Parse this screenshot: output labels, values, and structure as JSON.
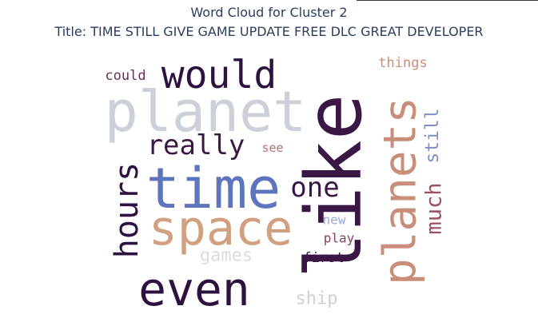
{
  "chart_data": {
    "type": "wordcloud",
    "title": "Word Cloud for Cluster 2",
    "subtitle": "Title: TIME STILL GIVE GAME UPDATE FREE DLC GREAT DEVELOPER",
    "words": [
      {
        "text": "like",
        "color": "#3b1746"
      },
      {
        "text": "planet",
        "color": "#ccd0d8"
      },
      {
        "text": "time",
        "color": "#5e74bc"
      },
      {
        "text": "space",
        "color": "#d0a081"
      },
      {
        "text": "planets",
        "color": "#c88e79"
      },
      {
        "text": "even",
        "color": "#2d1240"
      },
      {
        "text": "would",
        "color": "#2d1240"
      },
      {
        "text": "hours",
        "color": "#2d1240"
      },
      {
        "text": "really",
        "color": "#3b1746"
      },
      {
        "text": "one",
        "color": "#3b1746"
      },
      {
        "text": "much",
        "color": "#9a5060"
      },
      {
        "text": "still",
        "color": "#7f8fc6"
      },
      {
        "text": "games",
        "color": "#e0d8e0"
      },
      {
        "text": "ship",
        "color": "#ccd0d8"
      },
      {
        "text": "could",
        "color": "#6b2d5c"
      },
      {
        "text": "things",
        "color": "#c88e79"
      },
      {
        "text": "see",
        "color": "#b87070"
      },
      {
        "text": "new",
        "color": "#9ba8d4"
      },
      {
        "text": "play",
        "color": "#8a4060"
      },
      {
        "text": "first",
        "color": "#3b1746"
      }
    ]
  }
}
